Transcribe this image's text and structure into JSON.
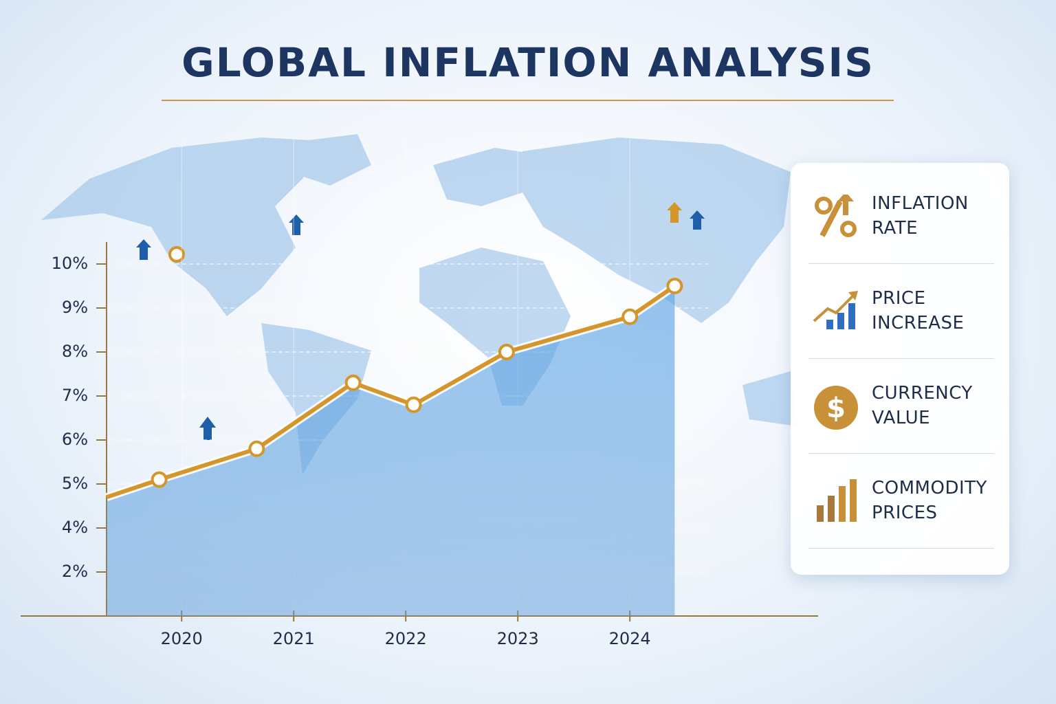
{
  "chart_data": {
    "type": "line",
    "title": "GLOBAL INFLATION ANALYSIS",
    "x": [
      2019.33,
      2019.8,
      2020.67,
      2021.53,
      2022.07,
      2022.9,
      2024.0,
      2024.4
    ],
    "series": [
      {
        "name": "INFLATION RATE",
        "color": "#d4952a",
        "values": [
          4.7,
          5.1,
          5.8,
          7.3,
          6.8,
          8.0,
          8.8,
          9.5
        ]
      }
    ],
    "xlim": [
      2019.33,
      2025.68
    ],
    "xticks": [
      2020,
      2021,
      2022,
      2023,
      2024
    ],
    "ylim": [
      0,
      10.5
    ],
    "yticks": [
      {
        "value": 2,
        "label": "2%"
      },
      {
        "value": 4,
        "label": "4%"
      },
      {
        "value": 5,
        "label": "5%"
      },
      {
        "value": 6,
        "label": "6%"
      },
      {
        "value": 7,
        "label": "7%"
      },
      {
        "value": 8,
        "label": "8%"
      },
      {
        "value": 9,
        "label": "9%"
      },
      {
        "value": 10,
        "label": "10%"
      }
    ],
    "grid": true
  },
  "panel": {
    "items": [
      "INFLATION RATE",
      "PRICE INCREASE",
      "CURRENCY VALUE",
      "COMMODITY PRICES"
    ]
  }
}
